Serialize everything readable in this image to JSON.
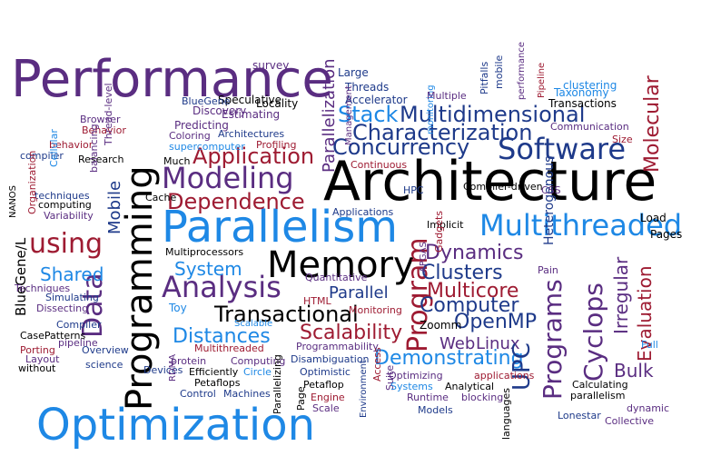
{
  "palette": {
    "purple": "#5a2d81",
    "blue": "#1e3a8a",
    "sky": "#1e88e5",
    "red": "#9e1b32",
    "black": "#000000",
    "gray": "#2b2b2b"
  },
  "words": [
    {
      "text": "Performance",
      "color": "purple"
    },
    {
      "text": "Architecture",
      "color": "black"
    },
    {
      "text": "Parallelism",
      "color": "sky"
    },
    {
      "text": "Optimization",
      "color": "sky"
    },
    {
      "text": "Programming",
      "color": "black"
    },
    {
      "text": "Memory",
      "color": "black"
    },
    {
      "text": "Multithreaded",
      "color": "sky"
    },
    {
      "text": "Software",
      "color": "blue"
    },
    {
      "text": "Modeling",
      "color": "purple"
    },
    {
      "text": "Analysis",
      "color": "purple"
    },
    {
      "text": "Data",
      "color": "purple"
    },
    {
      "text": "using",
      "color": "red"
    },
    {
      "text": "Program",
      "color": "red"
    },
    {
      "text": "Programs",
      "color": "purple"
    },
    {
      "text": "Cyclops",
      "color": "purple"
    },
    {
      "text": "Characterization",
      "color": "blue"
    },
    {
      "text": "Multidimensional",
      "color": "blue"
    },
    {
      "text": "Concurrency",
      "color": "blue"
    },
    {
      "text": "Application",
      "color": "red"
    },
    {
      "text": "Dependence",
      "color": "red"
    },
    {
      "text": "Molecular",
      "color": "red"
    },
    {
      "text": "Parallelization",
      "color": "purple"
    },
    {
      "text": "Stack",
      "color": "sky"
    },
    {
      "text": "Transactional",
      "color": "black"
    },
    {
      "text": "Scalability",
      "color": "red"
    },
    {
      "text": "Distances",
      "color": "sky"
    },
    {
      "text": "System",
      "color": "sky"
    },
    {
      "text": "Shared",
      "color": "sky"
    },
    {
      "text": "Dynamics",
      "color": "purple"
    },
    {
      "text": "Clusters",
      "color": "blue"
    },
    {
      "text": "Multicore",
      "color": "red"
    },
    {
      "text": "Computer",
      "color": "blue"
    },
    {
      "text": "OpenMP",
      "color": "blue"
    },
    {
      "text": "Demonstrating",
      "color": "sky"
    },
    {
      "text": "Web",
      "color": "purple"
    },
    {
      "text": "Linux",
      "color": "purple"
    },
    {
      "text": "UPC",
      "color": "blue"
    },
    {
      "text": "Evaluation",
      "color": "red"
    },
    {
      "text": "Irregular",
      "color": "purple"
    },
    {
      "text": "Bulk",
      "color": "purple"
    },
    {
      "text": "Mobile",
      "color": "blue"
    },
    {
      "text": "BlueGene/L",
      "color": "black"
    },
    {
      "text": "Parallel",
      "color": "blue"
    },
    {
      "text": "Heterogenous",
      "color": "blue"
    },
    {
      "text": "Load",
      "color": "black"
    },
    {
      "text": "Pages",
      "color": "black"
    },
    {
      "text": "Toy",
      "color": "sky"
    },
    {
      "text": "Zoomm",
      "color": "black"
    },
    {
      "text": "survey",
      "color": "purple"
    },
    {
      "text": "Discovery",
      "color": "purple"
    },
    {
      "text": "Speculative",
      "color": "black"
    },
    {
      "text": "Locality",
      "color": "black"
    },
    {
      "text": "Estimating",
      "color": "purple"
    },
    {
      "text": "BlueGene",
      "color": "blue"
    },
    {
      "text": "Predicting",
      "color": "purple"
    },
    {
      "text": "Coloring",
      "color": "purple"
    },
    {
      "text": "Architectures",
      "color": "blue"
    },
    {
      "text": "supercomputer",
      "color": "sky"
    },
    {
      "text": "Profiling",
      "color": "red"
    },
    {
      "text": "Much",
      "color": "black"
    },
    {
      "text": "Browser",
      "color": "purple"
    },
    {
      "text": "Behavior",
      "color": "red"
    },
    {
      "text": "behavior",
      "color": "red"
    },
    {
      "text": "compiler",
      "color": "blue"
    },
    {
      "text": "Research",
      "color": "black"
    },
    {
      "text": "Thread-level",
      "color": "purple"
    },
    {
      "text": "balancing",
      "color": "purple"
    },
    {
      "text": "Cellular",
      "color": "sky"
    },
    {
      "text": "computing",
      "color": "black"
    },
    {
      "text": "techniques",
      "color": "blue"
    },
    {
      "text": "Variability",
      "color": "purple"
    },
    {
      "text": "Organization",
      "color": "red"
    },
    {
      "text": "NANOS",
      "color": "black"
    },
    {
      "text": "Cache",
      "color": "black"
    },
    {
      "text": "Techniques",
      "color": "purple"
    },
    {
      "text": "Simulating",
      "color": "blue"
    },
    {
      "text": "Dissecting",
      "color": "purple"
    },
    {
      "text": "Compiler",
      "color": "blue"
    },
    {
      "text": "CasePatterns",
      "color": "black"
    },
    {
      "text": "pipeline",
      "color": "purple"
    },
    {
      "text": "Porting",
      "color": "red"
    },
    {
      "text": "Overview",
      "color": "blue"
    },
    {
      "text": "Layout",
      "color": "purple"
    },
    {
      "text": "without",
      "color": "black"
    },
    {
      "text": "science",
      "color": "blue"
    },
    {
      "text": "Multiprocessors",
      "color": "black"
    },
    {
      "text": "Quantitative",
      "color": "purple"
    },
    {
      "text": "HTML",
      "color": "red"
    },
    {
      "text": "Monitoring",
      "color": "red"
    },
    {
      "text": "Scalable",
      "color": "sky"
    },
    {
      "text": "Multithreaded",
      "color": "red"
    },
    {
      "text": "Programmability",
      "color": "purple"
    },
    {
      "text": "protein",
      "color": "purple"
    },
    {
      "text": "Computing",
      "color": "purple"
    },
    {
      "text": "Devices",
      "color": "blue"
    },
    {
      "text": "Efficiently",
      "color": "black"
    },
    {
      "text": "Circle",
      "color": "sky"
    },
    {
      "text": "Petaflops",
      "color": "black"
    },
    {
      "text": "Control",
      "color": "blue"
    },
    {
      "text": "Machines",
      "color": "blue"
    },
    {
      "text": "RDMA",
      "color": "purple"
    },
    {
      "text": "Parallelizing",
      "color": "black"
    },
    {
      "text": "Page",
      "color": "black"
    },
    {
      "text": "Petaflop",
      "color": "black"
    },
    {
      "text": "Disambiguation",
      "color": "blue"
    },
    {
      "text": "Optimistic",
      "color": "blue"
    },
    {
      "text": "Engine",
      "color": "red"
    },
    {
      "text": "Scale",
      "color": "purple"
    },
    {
      "text": "Environment",
      "color": "blue"
    },
    {
      "text": "Access",
      "color": "red"
    },
    {
      "text": "Suite",
      "color": "purple"
    },
    {
      "text": "Optimizing",
      "color": "purple"
    },
    {
      "text": "Systems",
      "color": "sky"
    },
    {
      "text": "applications",
      "color": "red"
    },
    {
      "text": "Analytical",
      "color": "black"
    },
    {
      "text": "Runtime",
      "color": "purple"
    },
    {
      "text": "blocking",
      "color": "purple"
    },
    {
      "text": "Models",
      "color": "blue"
    },
    {
      "text": "languages",
      "color": "black"
    },
    {
      "text": "Lonestar",
      "color": "blue"
    },
    {
      "text": "Collective",
      "color": "purple"
    },
    {
      "text": "dynamic",
      "color": "purple"
    },
    {
      "text": "parallelism",
      "color": "black"
    },
    {
      "text": "Calculating",
      "color": "black"
    },
    {
      "text": "Full",
      "color": "sky"
    },
    {
      "text": "Large",
      "color": "blue"
    },
    {
      "text": "Threads",
      "color": "blue"
    },
    {
      "text": "Accelerator",
      "color": "blue"
    },
    {
      "text": "Management",
      "color": "purple"
    },
    {
      "text": "monitoring",
      "color": "sky"
    },
    {
      "text": "Multiple",
      "color": "purple"
    },
    {
      "text": "Pitfalls",
      "color": "blue"
    },
    {
      "text": "mobile",
      "color": "blue"
    },
    {
      "text": "performance",
      "color": "purple"
    },
    {
      "text": "Pipeline",
      "color": "red"
    },
    {
      "text": "clustering",
      "color": "sky"
    },
    {
      "text": "Taxonomy",
      "color": "sky"
    },
    {
      "text": "Transactions",
      "color": "black"
    },
    {
      "text": "Communication",
      "color": "purple"
    },
    {
      "text": "Size",
      "color": "red"
    },
    {
      "text": "Continuous",
      "color": "red"
    },
    {
      "text": "HPC",
      "color": "blue"
    },
    {
      "text": "Compiler-driven",
      "color": "black"
    },
    {
      "text": "CSS",
      "color": "purple"
    },
    {
      "text": "Applications",
      "color": "blue"
    },
    {
      "text": "Implicit",
      "color": "black"
    },
    {
      "text": "Gadgets",
      "color": "red"
    },
    {
      "text": "APGAS",
      "color": "purple"
    },
    {
      "text": "Pain",
      "color": "purple"
    }
  ]
}
